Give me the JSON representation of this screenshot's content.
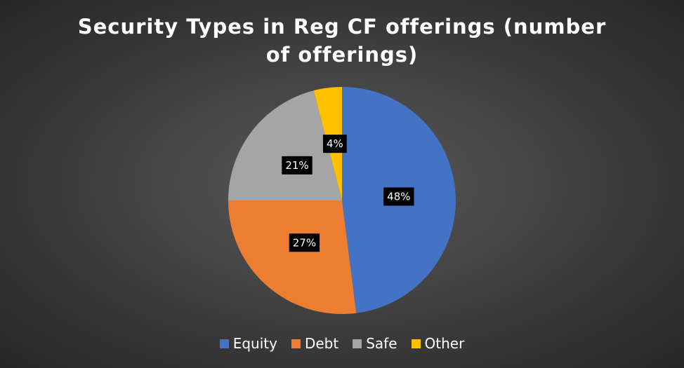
{
  "chart_data": {
    "type": "pie",
    "title": "Security Types in Reg CF offerings (number of offerings)",
    "categories": [
      "Equity",
      "Debt",
      "Safe",
      "Other"
    ],
    "values": [
      48,
      27,
      21,
      4
    ],
    "value_labels": [
      "48%",
      "27%",
      "21%",
      "4%"
    ],
    "colors": [
      "#4472c4",
      "#ed7d31",
      "#a5a5a5",
      "#ffc000"
    ],
    "legend": "bottom"
  }
}
